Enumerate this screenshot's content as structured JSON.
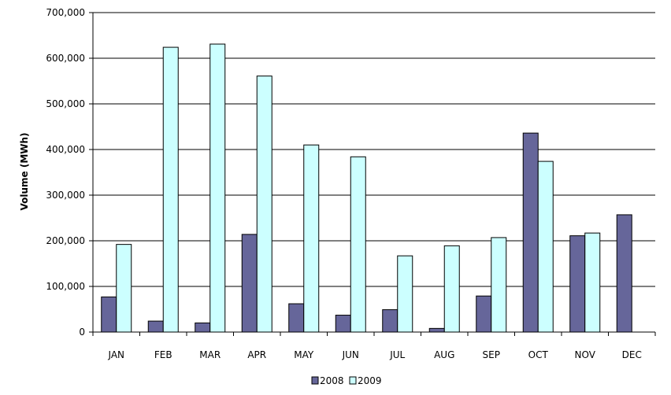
{
  "chart_data": {
    "type": "bar",
    "title": "",
    "xlabel": "",
    "ylabel": "Volume (MWh)",
    "ylim": [
      0,
      700000
    ],
    "yticks": [
      0,
      100000,
      200000,
      300000,
      400000,
      500000,
      600000,
      700000
    ],
    "ytick_labels": [
      "0",
      "100,000",
      "200,000",
      "300,000",
      "400,000",
      "500,000",
      "600,000",
      "700,000"
    ],
    "categories": [
      "JAN",
      "FEB",
      "MAR",
      "APR",
      "MAY",
      "JUN",
      "JUL",
      "AUG",
      "SEP",
      "OCT",
      "NOV",
      "DEC"
    ],
    "series": [
      {
        "name": "2008",
        "color": "#66669a",
        "values": [
          77000,
          24000,
          20000,
          214000,
          62000,
          37000,
          49000,
          8000,
          79000,
          436000,
          211000,
          257000
        ]
      },
      {
        "name": "2009",
        "color": "#ccffff",
        "values": [
          192000,
          624000,
          631000,
          561000,
          410000,
          384000,
          167000,
          189000,
          207000,
          374000,
          217000,
          null
        ]
      }
    ],
    "grid": true,
    "legend_position": "bottom"
  }
}
